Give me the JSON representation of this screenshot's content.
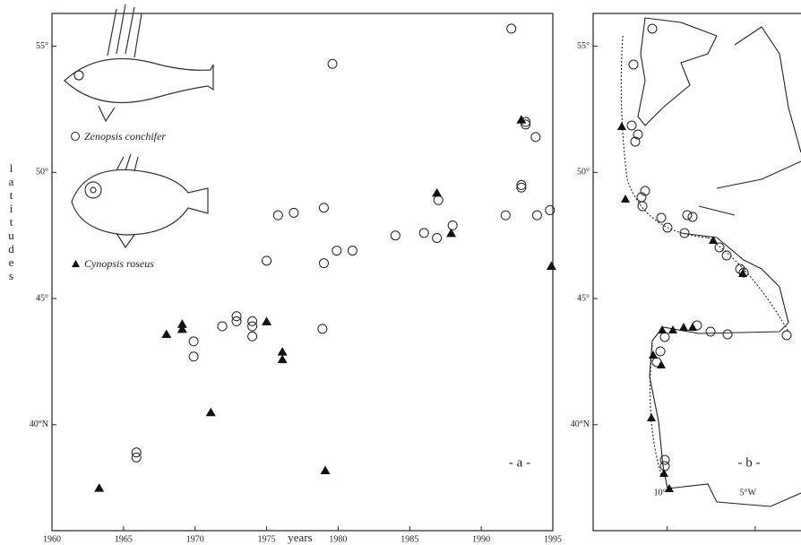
{
  "chart_data": [
    {
      "type": "scatter",
      "x_label": "years",
      "y_label": "latitudes",
      "annotation": "- a -",
      "xlim": [
        1960,
        1995
      ],
      "xticks": [
        1960,
        1965,
        1970,
        1975,
        1980,
        1985,
        1990,
        1995
      ],
      "ylim": [
        35.8,
        56.3
      ],
      "yticks": [
        {
          "value": 40,
          "label": "40°N"
        },
        {
          "value": 45,
          "label": "45°"
        },
        {
          "value": 50,
          "label": "50°"
        },
        {
          "value": 55,
          "label": "55°"
        }
      ],
      "series": [
        {
          "name": "Zenopsis conchifer",
          "marker": "circle",
          "color": "#222",
          "x": [
            1992.1,
            1979.6,
            1993.1,
            1993.1,
            1993.8,
            1992.8,
            1992.8,
            1987.0,
            1991.7,
            1993.9,
            1994.8,
            1979.0,
            1975.8,
            1976.9,
            1988.0,
            1986.0,
            1986.9,
            1984.0,
            1979.9,
            1981.0,
            1979.0,
            1975.0,
            1978.9,
            1972.9,
            1972.9,
            1974.0,
            1974.0,
            1974.0,
            1971.9,
            1969.9,
            1969.9,
            1965.9,
            1965.9
          ],
          "values": [
            55.7,
            54.3,
            52.0,
            51.9,
            51.4,
            49.5,
            49.4,
            48.9,
            48.3,
            48.3,
            48.5,
            48.6,
            48.3,
            48.4,
            47.9,
            47.6,
            47.4,
            47.5,
            46.9,
            46.9,
            46.4,
            46.5,
            43.8,
            44.3,
            44.1,
            44.1,
            43.9,
            43.5,
            43.9,
            43.3,
            42.7,
            38.9,
            38.7
          ]
        },
        {
          "name": "Cynopsis roseus",
          "marker": "triangle",
          "color": "#111",
          "x": [
            1963.3,
            1968.0,
            1969.1,
            1969.1,
            1971.1,
            1975.0,
            1976.1,
            1976.1,
            1979.1,
            1986.9,
            1987.9,
            1992.8,
            1994.9
          ],
          "values": [
            37.5,
            43.6,
            44.0,
            43.8,
            40.5,
            44.1,
            42.9,
            42.6,
            38.2,
            49.2,
            47.6,
            52.1,
            46.3
          ]
        }
      ]
    },
    {
      "type": "map",
      "annotation": "- b -",
      "xlim": [
        -14.2,
        -2.4
      ],
      "xticks": [
        {
          "value": -10,
          "label": "10°"
        },
        {
          "value": -5,
          "label": "5°W"
        }
      ],
      "ylim": [
        35.8,
        56.3
      ],
      "yticks": [
        {
          "value": 40,
          "label": "40°N"
        },
        {
          "value": 45,
          "label": "45°"
        },
        {
          "value": 50,
          "label": "50°"
        },
        {
          "value": 55,
          "label": "55°"
        }
      ]
    }
  ]
}
